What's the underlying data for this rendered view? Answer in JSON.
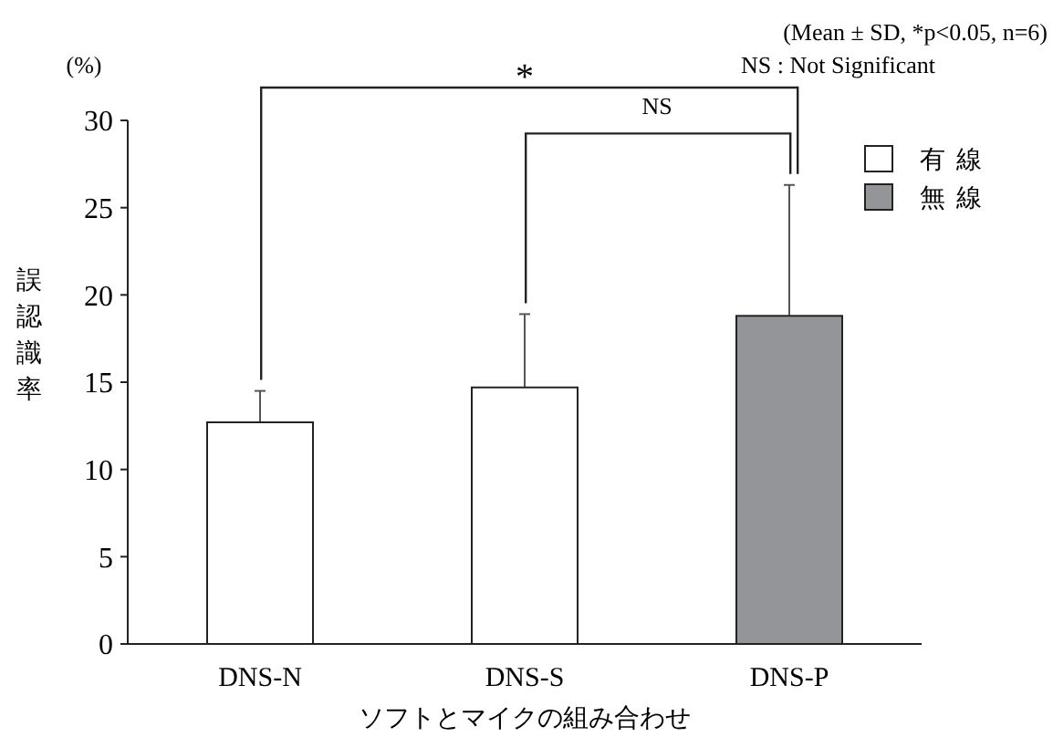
{
  "chart_data": {
    "type": "bar",
    "xlabel": "ソフトとマイクの組み合わせ",
    "ylabel": "誤認識率",
    "categories": [
      "DNS-N",
      "DNS-S",
      "DNS-P"
    ],
    "series": [
      {
        "name": "有線",
        "color": "#ffffff",
        "values": [
          12.7,
          14.7,
          null
        ],
        "errors": [
          1.8,
          4.2,
          null
        ]
      },
      {
        "name": "無線",
        "color": "#939598",
        "values": [
          null,
          null,
          18.8
        ],
        "errors": [
          null,
          null,
          7.5
        ]
      }
    ],
    "ylim": [
      0,
      30
    ],
    "yticks": [
      0,
      5,
      10,
      15,
      20,
      25,
      30
    ],
    "legend": "top right",
    "grid": false,
    "annotations": [
      "(%)",
      "*",
      "NS",
      "(Mean ± SD, *p<0.05, n=6)",
      "NS : Not Significant"
    ]
  }
}
